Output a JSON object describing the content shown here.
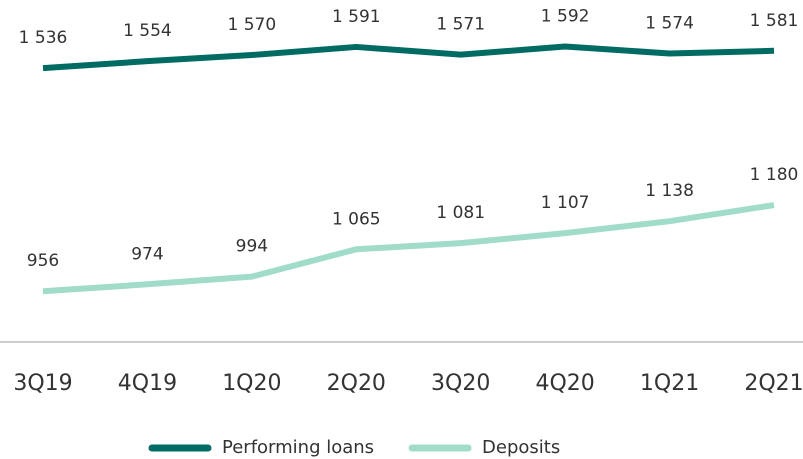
{
  "chart_data": {
    "type": "line",
    "categories": [
      "3Q19",
      "4Q19",
      "1Q20",
      "2Q20",
      "3Q20",
      "4Q20",
      "1Q21",
      "2Q21"
    ],
    "series": [
      {
        "name": "Performing loans",
        "color": "#006b63",
        "values": [
          1536,
          1554,
          1570,
          1591,
          1571,
          1592,
          1574,
          1581
        ],
        "value_labels": [
          "1 536",
          "1 554",
          "1 570",
          "1 591",
          "1 571",
          "1 592",
          "1 574",
          "1 581"
        ]
      },
      {
        "name": "Deposits",
        "color": "#a0dcc9",
        "values": [
          956,
          974,
          994,
          1065,
          1081,
          1107,
          1138,
          1180
        ],
        "value_labels": [
          "956",
          "974",
          "994",
          "1 065",
          "1 081",
          "1 107",
          "1 138",
          "1 180"
        ]
      }
    ],
    "ylim": [
      824,
      1713
    ]
  }
}
